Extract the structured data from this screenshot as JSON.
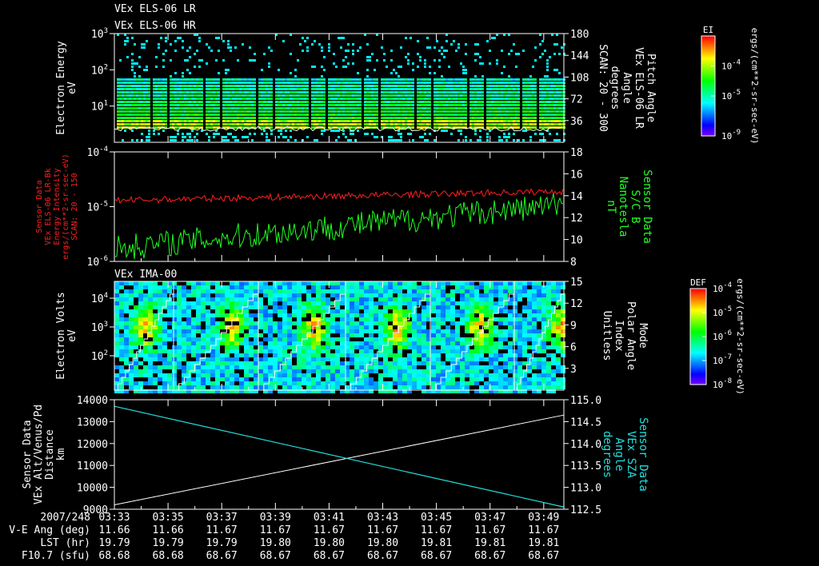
{
  "header": {
    "title_lr": "VEx ELS-06 LR",
    "title_hr": "VEx ELS-06 HR",
    "ima_title": "VEx IMA-00"
  },
  "chart_data": [
    {
      "type": "heatmap",
      "name": "ELS spectrogram",
      "ylabel": [
        "Electron Energy",
        "eV"
      ],
      "yscale": "log",
      "ylim": [
        1,
        1000
      ],
      "yticks": [
        "10^1",
        "10^2",
        "10^3"
      ],
      "right_ylabel": [
        "Pitch Angle",
        "VEx ELS-06 LR",
        "Angle",
        "degrees",
        "SCAN: 20 - 300"
      ],
      "right_ylim": [
        0,
        180
      ],
      "right_yticks": [
        "36",
        "72",
        "108",
        "144",
        "180"
      ],
      "colorbar": {
        "title": "EI",
        "ticks": [
          "10^-9",
          "10^-5",
          "10^-4"
        ],
        "units": "ergs/(cm**2-sr-sec-eV)"
      }
    },
    {
      "type": "line",
      "name": "Energy intensity and magnetic field",
      "ylabel": [
        "Sensor Data",
        "VEx ELS-06 LR-Bk",
        "Energy Intensity",
        "ergs/(cm**2-sr-sec-eV)",
        "SCAN: 20 - 150"
      ],
      "yscale": "log",
      "ylim": [
        1e-06,
        0.0001
      ],
      "yticks": [
        "10^-6",
        "10^-5",
        "10^-4"
      ],
      "right_ylabel": [
        "Sensor Data",
        "S/C B",
        "Nanotesla",
        "nT"
      ],
      "right_ylim": [
        8,
        18
      ],
      "right_yticks": [
        "8",
        "10",
        "12",
        "14",
        "16",
        "18"
      ],
      "series": [
        {
          "name": "Energy Intensity",
          "color": "#ff2020",
          "axis": "left",
          "start": 1.3e-05,
          "end": 1.9e-05
        },
        {
          "name": "S/C B",
          "color": "#20ff20",
          "axis": "right",
          "start": 9.2,
          "end": 13.2
        }
      ]
    },
    {
      "type": "heatmap",
      "name": "IMA spectrogram",
      "ylabel": [
        "Electron Volts",
        "eV"
      ],
      "yscale": "log",
      "ylim": [
        6,
        40000
      ],
      "yticks": [
        "10^2",
        "10^3",
        "10^4"
      ],
      "right_ylabel": [
        "Mode",
        "Polar Angle",
        "Index",
        "Unitless"
      ],
      "right_ylim": [
        0,
        15
      ],
      "right_yticks": [
        "3",
        "6",
        "9",
        "12",
        "15"
      ],
      "colorbar": {
        "title": "DEF",
        "ticks": [
          "10^-8",
          "10^-7",
          "10^-6",
          "10^-5",
          "10^-4"
        ],
        "units": "ergs/(cm**2-sr-sec-eV)"
      }
    },
    {
      "type": "line",
      "name": "Altitude and SZA",
      "ylabel": [
        "Sensor Data",
        "VEx Alt/Venus/Pd",
        "Distance",
        "km"
      ],
      "ylim": [
        9000,
        14000
      ],
      "yticks": [
        "9000",
        "10000",
        "11000",
        "12000",
        "13000",
        "14000"
      ],
      "right_ylabel": [
        "Sensor Data",
        "VEx SZA",
        "Angle",
        "degrees"
      ],
      "right_ylim": [
        112.5,
        115.0
      ],
      "right_yticks": [
        "112.5",
        "113.0",
        "113.5",
        "114.0",
        "114.5",
        "115.0"
      ],
      "series": [
        {
          "name": "Altitude",
          "color": "#ffffff",
          "axis": "left",
          "start": 9200,
          "end": 13300
        },
        {
          "name": "SZA",
          "color": "#20e0e0",
          "axis": "right",
          "start": 114.85,
          "end": 112.55
        }
      ]
    }
  ],
  "footer": {
    "row_labels": [
      "2007/248",
      "V-E Ang (deg)",
      "LST (hr)",
      "F10.7 (sfu)"
    ],
    "times": [
      "03:33",
      "03:35",
      "03:37",
      "03:39",
      "03:41",
      "03:43",
      "03:45",
      "03:47",
      "03:49"
    ],
    "ve_ang": [
      "11.66",
      "11.66",
      "11.67",
      "11.67",
      "11.67",
      "11.67",
      "11.67",
      "11.67",
      "11.67"
    ],
    "lst": [
      "19.79",
      "19.79",
      "19.79",
      "19.80",
      "19.80",
      "19.80",
      "19.81",
      "19.81",
      "19.81"
    ],
    "f107": [
      "68.68",
      "68.68",
      "68.67",
      "68.67",
      "68.67",
      "68.67",
      "68.67",
      "68.67",
      "68.67"
    ]
  }
}
